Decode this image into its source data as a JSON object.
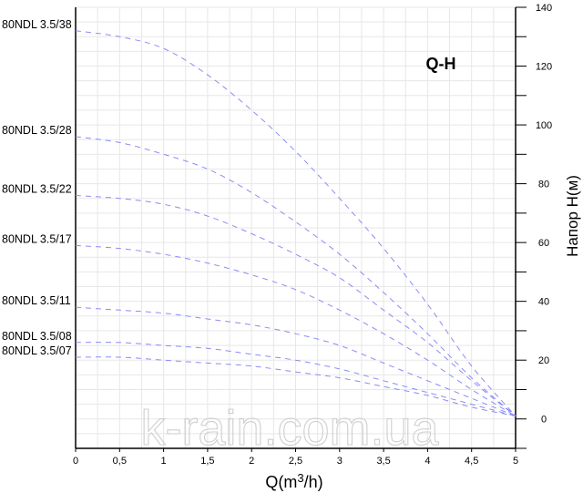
{
  "chart_data": {
    "type": "line",
    "title": "Q-H",
    "xlabel_main": "Q(m",
    "xlabel_sup": "3",
    "xlabel_end": "/h)",
    "ylabel": "Напор H(м)",
    "watermark": "k-rain.com.ua",
    "xlim": [
      0,
      5
    ],
    "ylim": [
      -10,
      140
    ],
    "x_ticks": [
      {
        "value": 0,
        "label": "0"
      },
      {
        "value": 0.5,
        "label": "0,5"
      },
      {
        "value": 1,
        "label": "1"
      },
      {
        "value": 1.5,
        "label": "1,5"
      },
      {
        "value": 2,
        "label": "2"
      },
      {
        "value": 2.5,
        "label": "2,5"
      },
      {
        "value": 3,
        "label": "3"
      },
      {
        "value": 3.5,
        "label": "3,5"
      },
      {
        "value": 4,
        "label": "4"
      },
      {
        "value": 4.5,
        "label": "4,5"
      },
      {
        "value": 5,
        "label": "5"
      }
    ],
    "y_ticks": [
      0,
      20,
      40,
      60,
      80,
      100,
      120,
      140
    ],
    "grid": true,
    "line_style": "dashed",
    "line_color": "#8a8cf5",
    "series": [
      {
        "name": "80NDL 3.5/38",
        "x": [
          0,
          0.5,
          1,
          1.5,
          2,
          2.5,
          3,
          3.5,
          4,
          4.5,
          5
        ],
        "y": [
          132,
          130,
          126,
          117,
          105,
          91,
          75,
          58,
          39,
          18,
          1
        ]
      },
      {
        "name": "80NDL 3.5/28",
        "x": [
          0,
          0.5,
          1,
          1.5,
          2,
          2.5,
          3,
          3.5,
          4,
          4.5,
          5
        ],
        "y": [
          96,
          94,
          90,
          85,
          77,
          67,
          56,
          43,
          29,
          14,
          1
        ]
      },
      {
        "name": "80NDL 3.5/22",
        "x": [
          0,
          0.5,
          1,
          1.5,
          2,
          2.5,
          3,
          3.5,
          4,
          4.5,
          5
        ],
        "y": [
          76,
          75,
          73,
          69,
          63,
          56,
          48,
          37,
          26,
          13,
          1
        ]
      },
      {
        "name": "80NDL 3.5/17",
        "x": [
          0,
          0.5,
          1,
          1.5,
          2,
          2.5,
          3,
          3.5,
          4,
          4.5,
          5
        ],
        "y": [
          59,
          58,
          56,
          53,
          49,
          44,
          37,
          29,
          20,
          10,
          1
        ]
      },
      {
        "name": "80NDL 3.5/11",
        "x": [
          0,
          0.5,
          1,
          1.5,
          2,
          2.5,
          3,
          3.5,
          4,
          4.5,
          5
        ],
        "y": [
          38,
          37,
          36,
          34,
          32,
          29,
          25,
          19,
          13,
          7,
          1
        ]
      },
      {
        "name": "80NDL 3.5/08",
        "x": [
          0,
          0.5,
          1,
          1.5,
          2,
          2.5,
          3,
          3.5,
          4,
          4.5,
          5
        ],
        "y": [
          26,
          26,
          25,
          24,
          22,
          20,
          17,
          13,
          9,
          5,
          1
        ]
      },
      {
        "name": "80NDL 3.5/07",
        "x": [
          0,
          0.5,
          1,
          1.5,
          2,
          2.5,
          3,
          3.5,
          4,
          4.5,
          5
        ],
        "y": [
          21,
          21,
          20,
          19,
          18,
          16,
          14,
          11,
          8,
          4,
          1
        ]
      }
    ]
  }
}
